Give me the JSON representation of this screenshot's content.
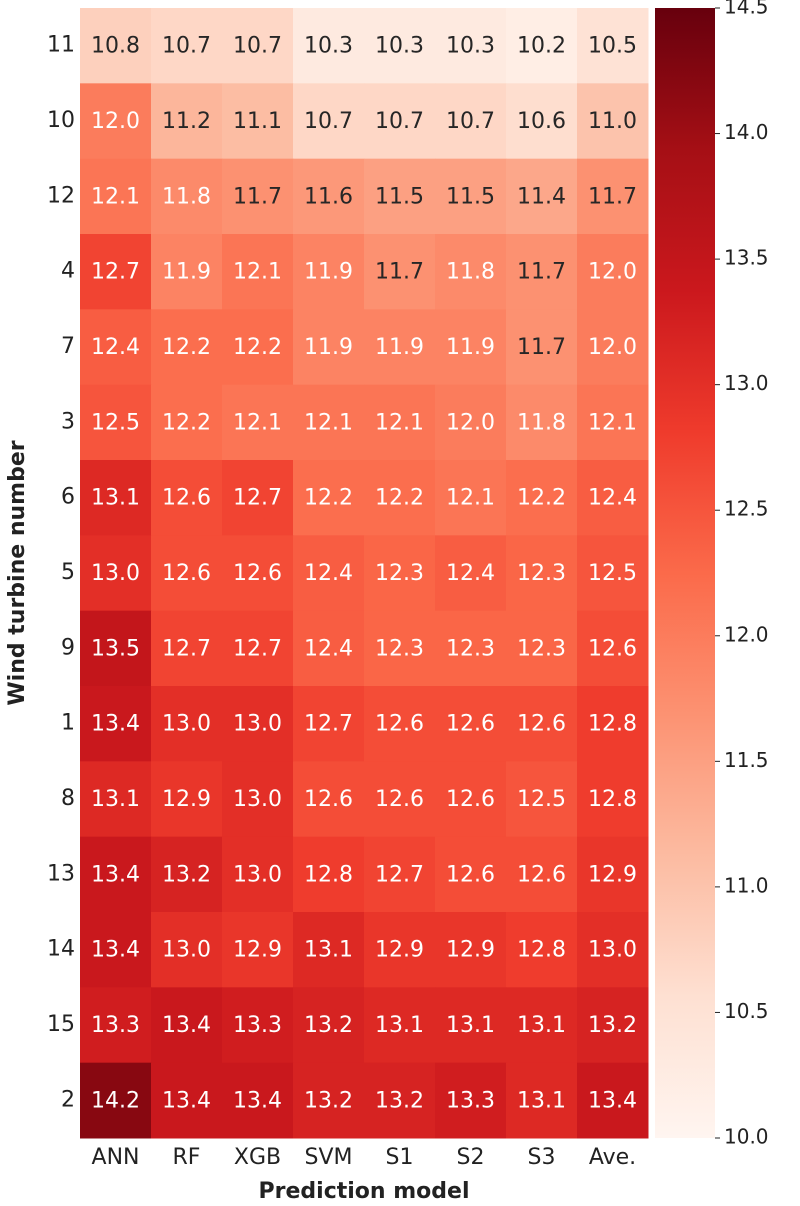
{
  "chart_data": {
    "type": "heatmap",
    "x_label": "Prediction model",
    "y_label": "Wind turbine number",
    "categories": [
      "ANN",
      "RF",
      "XGB",
      "SVM",
      "S1",
      "S2",
      "S3",
      "Ave."
    ],
    "rows": [
      "11",
      "10",
      "12",
      "4",
      "7",
      "3",
      "6",
      "5",
      "9",
      "1",
      "8",
      "13",
      "14",
      "15",
      "2"
    ],
    "values": [
      [
        10.8,
        10.7,
        10.7,
        10.3,
        10.3,
        10.3,
        10.2,
        10.5
      ],
      [
        12.0,
        11.2,
        11.1,
        10.7,
        10.7,
        10.7,
        10.6,
        11.0
      ],
      [
        12.1,
        11.8,
        11.7,
        11.6,
        11.5,
        11.5,
        11.4,
        11.7
      ],
      [
        12.7,
        11.9,
        12.1,
        11.9,
        11.7,
        11.8,
        11.7,
        12.0
      ],
      [
        12.4,
        12.2,
        12.2,
        11.9,
        11.9,
        11.9,
        11.7,
        12.0
      ],
      [
        12.5,
        12.2,
        12.1,
        12.1,
        12.1,
        12.0,
        11.8,
        12.1
      ],
      [
        13.1,
        12.6,
        12.7,
        12.2,
        12.2,
        12.1,
        12.2,
        12.4
      ],
      [
        13.0,
        12.6,
        12.6,
        12.4,
        12.3,
        12.4,
        12.3,
        12.5
      ],
      [
        13.5,
        12.7,
        12.7,
        12.4,
        12.3,
        12.3,
        12.3,
        12.6
      ],
      [
        13.4,
        13.0,
        13.0,
        12.7,
        12.6,
        12.6,
        12.6,
        12.8
      ],
      [
        13.1,
        12.9,
        13.0,
        12.6,
        12.6,
        12.6,
        12.5,
        12.8
      ],
      [
        13.4,
        13.2,
        13.0,
        12.8,
        12.7,
        12.6,
        12.6,
        12.9
      ],
      [
        13.4,
        13.0,
        12.9,
        13.1,
        12.9,
        12.9,
        12.8,
        13.0
      ],
      [
        13.3,
        13.4,
        13.3,
        13.2,
        13.1,
        13.1,
        13.1,
        13.2
      ],
      [
        14.2,
        13.4,
        13.4,
        13.2,
        13.2,
        13.3,
        13.1,
        13.4
      ]
    ],
    "value_labels": [
      [
        "10.8",
        "10.7",
        "10.7",
        "10.3",
        "10.3",
        "10.3",
        "10.2",
        "10.5"
      ],
      [
        "12.0",
        "11.2",
        "11.1",
        "10.7",
        "10.7",
        "10.7",
        "10.6",
        "11.0"
      ],
      [
        "12.1",
        "11.8",
        "11.7",
        "11.6",
        "11.5",
        "11.5",
        "11.4",
        "11.7"
      ],
      [
        "12.7",
        "11.9",
        "12.1",
        "11.9",
        "11.7",
        "11.8",
        "11.7",
        "12.0"
      ],
      [
        "12.4",
        "12.2",
        "12.2",
        "11.9",
        "11.9",
        "11.9",
        "11.7",
        "12.0"
      ],
      [
        "12.5",
        "12.2",
        "12.1",
        "12.1",
        "12.1",
        "12.0",
        "11.8",
        "12.1"
      ],
      [
        "13.1",
        "12.6",
        "12.7",
        "12.2",
        "12.2",
        "12.1",
        "12.2",
        "12.4"
      ],
      [
        "13.0",
        "12.6",
        "12.6",
        "12.4",
        "12.3",
        "12.4",
        "12.3",
        "12.5"
      ],
      [
        "13.5",
        "12.7",
        "12.7",
        "12.4",
        "12.3",
        "12.3",
        "12.3",
        "12.6"
      ],
      [
        "13.4",
        "13.0",
        "13.0",
        "12.7",
        "12.6",
        "12.6",
        "12.6",
        "12.8"
      ],
      [
        "13.1",
        "12.9",
        "13.0",
        "12.6",
        "12.6",
        "12.6",
        "12.5",
        "12.8"
      ],
      [
        "13.4",
        "13.2",
        "13.0",
        "12.8",
        "12.7",
        "12.6",
        "12.6",
        "12.9"
      ],
      [
        "13.4",
        "13.0",
        "12.9",
        "13.1",
        "12.9",
        "12.9",
        "12.8",
        "13.0"
      ],
      [
        "13.3",
        "13.4",
        "13.3",
        "13.2",
        "13.1",
        "13.1",
        "13.1",
        "13.2"
      ],
      [
        "14.2",
        "13.4",
        "13.4",
        "13.2",
        "13.2",
        "13.3",
        "13.1",
        "13.4"
      ]
    ],
    "colormap": "Reds",
    "clim": [
      10.0,
      14.5
    ],
    "cticks": [
      {
        "value": 10.0,
        "label": "10.0"
      },
      10.5,
      {
        "value": 11.0,
        "label": "11.0"
      },
      11.5,
      {
        "value": 12.0,
        "label": "12.0"
      },
      12.5,
      {
        "value": 13.0,
        "label": "13.0"
      },
      13.5,
      {
        "value": 14.0,
        "label": "14.0"
      },
      14.5
    ]
  }
}
